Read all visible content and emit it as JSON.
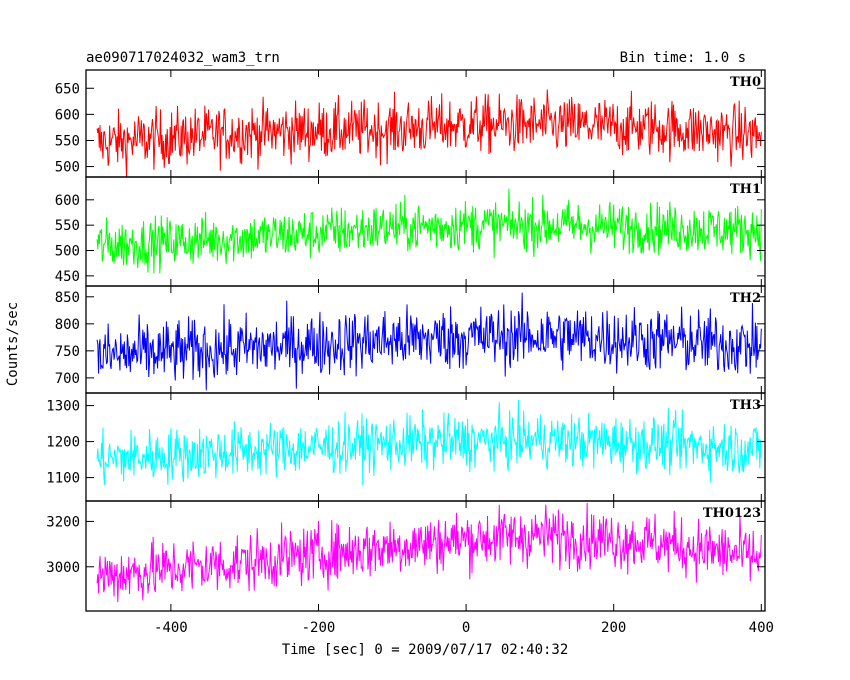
{
  "header": {
    "title": "ae090717024032_wam3_trn",
    "bin_time": "Bin time: 1.0 s"
  },
  "chart_data": {
    "type": "line",
    "xlabel": "Time [sec] 0 = 2009/07/17 02:40:32",
    "ylabel": "Counts/sec",
    "xlim": [
      -515,
      405
    ],
    "xticks": [
      -400,
      -200,
      0,
      200,
      400
    ],
    "x_step": 1.0,
    "x_range": [
      -500,
      400
    ],
    "panels": [
      {
        "name": "TH0",
        "color": "#ff0000",
        "ylim": [
          480,
          685
        ],
        "yticks": [
          500,
          550,
          600,
          650
        ],
        "trend": [
          [
            -500,
            545
          ],
          [
            -300,
            565
          ],
          [
            -100,
            572
          ],
          [
            0,
            580
          ],
          [
            100,
            580
          ],
          [
            250,
            575
          ],
          [
            400,
            560
          ]
        ],
        "noise": 28
      },
      {
        "name": "TH1",
        "color": "#00ff00",
        "ylim": [
          430,
          645
        ],
        "yticks": [
          450,
          500,
          550,
          600
        ],
        "trend": [
          [
            -500,
            510
          ],
          [
            -300,
            525
          ],
          [
            -100,
            545
          ],
          [
            0,
            550
          ],
          [
            100,
            550
          ],
          [
            250,
            545
          ],
          [
            400,
            540
          ]
        ],
        "noise": 25
      },
      {
        "name": "TH2",
        "color": "#0000ff",
        "ylim": [
          672,
          870
        ],
        "yticks": [
          700,
          750,
          800,
          850
        ],
        "trend": [
          [
            -500,
            740
          ],
          [
            -300,
            755
          ],
          [
            -100,
            770
          ],
          [
            0,
            775
          ],
          [
            100,
            778
          ],
          [
            250,
            770
          ],
          [
            400,
            760
          ]
        ],
        "noise": 30
      },
      {
        "name": "TH3",
        "color": "#00ffff",
        "ylim": [
          1035,
          1335
        ],
        "yticks": [
          1100,
          1200,
          1300
        ],
        "trend": [
          [
            -500,
            1150
          ],
          [
            -300,
            1175
          ],
          [
            -100,
            1195
          ],
          [
            0,
            1200
          ],
          [
            100,
            1205
          ],
          [
            250,
            1195
          ],
          [
            400,
            1180
          ]
        ],
        "noise": 38
      },
      {
        "name": "TH0123",
        "color": "#ff00ff",
        "ylim": [
          2805,
          3290
        ],
        "yticks": [
          3000,
          3200
        ],
        "trend": [
          [
            -500,
            2960
          ],
          [
            -300,
            3020
          ],
          [
            -100,
            3090
          ],
          [
            0,
            3120
          ],
          [
            100,
            3140
          ],
          [
            250,
            3110
          ],
          [
            400,
            3040
          ]
        ],
        "noise": 65
      }
    ]
  }
}
